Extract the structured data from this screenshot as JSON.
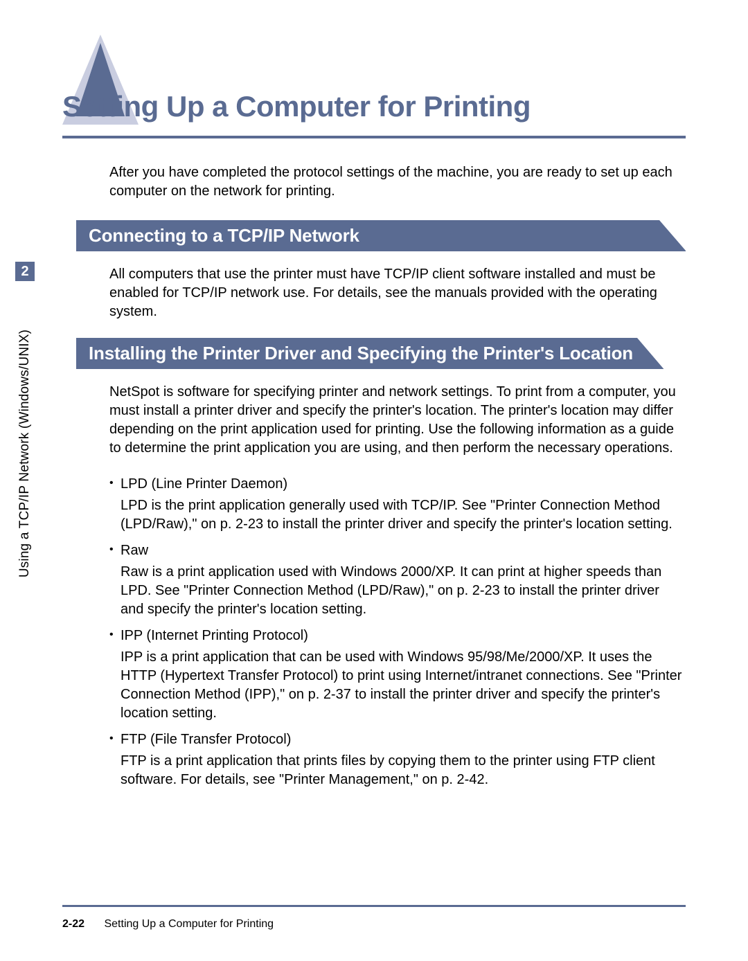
{
  "colors": {
    "accent": "#5a6b92",
    "accent_light": "#c9cde0",
    "text": "#000000",
    "bg": "#ffffff",
    "banner_text": "#ffffff"
  },
  "typography": {
    "title_fontsize_pt": 32,
    "section_fontsize_pt": 20,
    "body_fontsize_pt": 15,
    "footer_fontsize_pt": 12
  },
  "sidebar": {
    "chapter_number": "2",
    "vertical_label": "Using a TCP/IP Network (Windows/UNIX)"
  },
  "title": "Setting Up a Computer for Printing",
  "intro": "After you have completed the protocol settings of the machine, you are ready to set up each computer on the network for printing.",
  "sections": [
    {
      "heading": "Connecting to a TCP/IP Network",
      "body": "All computers that use the printer must have TCP/IP client software installed and must be enabled for TCP/IP network use. For details, see the manuals provided with the operating system."
    },
    {
      "heading": "Installing the Printer Driver and Specifying the Printer's Location",
      "body": "NetSpot is software for specifying printer and network settings. To print from a computer, you must install a printer driver and specify the printer's location. The printer's location may differ depending on the print application used for printing. Use the following information as a guide to determine the print application you are using, and then perform the necessary operations.",
      "bullets": [
        {
          "head": "LPD (Line Printer Daemon)",
          "body": "LPD is the print application generally used with TCP/IP. See \"Printer Connection Method (LPD/Raw),\" on p. 2-23 to install the printer driver and specify the printer's location setting."
        },
        {
          "head": "Raw",
          "body": "Raw is a print application used with Windows 2000/XP. It can print at higher speeds than LPD. See \"Printer Connection Method (LPD/Raw),\" on p. 2-23 to install the printer driver and specify the printer's location setting."
        },
        {
          "head": "IPP (Internet Printing Protocol)",
          "body": "IPP is a print application that can be used with Windows 95/98/Me/2000/XP. It uses the HTTP (Hypertext Transfer Protocol) to print using Internet/intranet connections. See \"Printer Connection Method (IPP),\" on p. 2-37 to install the printer driver and specify the printer's location setting."
        },
        {
          "head": "FTP (File Transfer Protocol)",
          "body": "FTP is a print application that prints files by copying them to the printer using FTP client software. For details, see \"Printer Management,\" on p. 2-42."
        }
      ]
    }
  ],
  "footer": {
    "page_number": "2-22",
    "running_title": "Setting Up a Computer for Printing"
  }
}
